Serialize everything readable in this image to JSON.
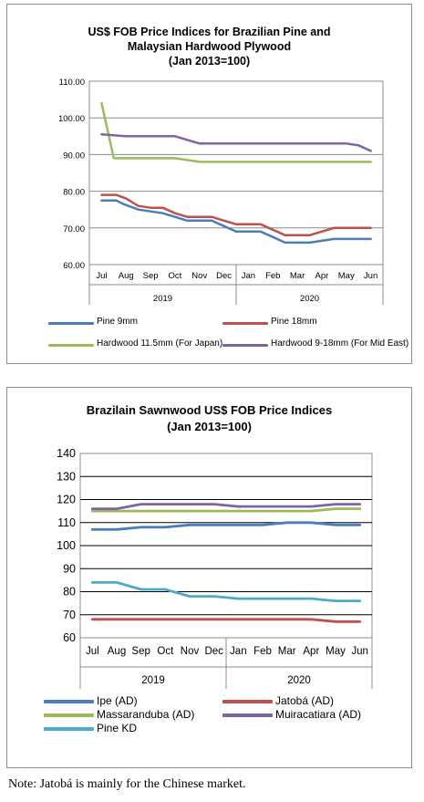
{
  "chart_data": [
    {
      "type": "line",
      "title_lines": [
        "US$ FOB Price Indices for Brazilian Pine and",
        "Malaysian Hardwood Plywood",
        "(Jan 2013=100)"
      ],
      "categories": [
        "Jul",
        "Aug",
        "Sep",
        "Oct",
        "Nov",
        "Dec",
        "Jan",
        "Feb",
        "Mar",
        "Apr",
        "May",
        "Jun"
      ],
      "groups": [
        {
          "label": "2019",
          "span": 6
        },
        {
          "label": "2020",
          "span": 6
        }
      ],
      "ylim": [
        60,
        110
      ],
      "yticks": [
        "60.00",
        "70.00",
        "80.00",
        "90.00",
        "100.00",
        "110.00"
      ],
      "grid": true,
      "legend_position": "bottom",
      "series": [
        {
          "name": "Pine 9mm",
          "color": "#4a7ebb",
          "x": [
            0,
            0.6,
            0.9,
            1.5,
            2,
            2.5,
            3,
            3.5,
            4,
            4.5,
            5,
            5.5,
            6,
            6.5,
            7,
            7.5,
            8,
            8.5,
            9,
            9.5,
            10,
            10.5,
            11
          ],
          "values": [
            77.5,
            77.5,
            76.5,
            75,
            74.5,
            74,
            73,
            72,
            72,
            72,
            70.5,
            69,
            69,
            69,
            67.5,
            66,
            66,
            66,
            66.5,
            67,
            67,
            67,
            67
          ]
        },
        {
          "name": "Pine 18mm",
          "color": "#c0504d",
          "x": [
            0,
            0.6,
            1,
            1.5,
            2,
            2.5,
            3,
            3.5,
            4,
            4.5,
            5,
            5.5,
            6,
            6.5,
            7,
            7.5,
            8,
            8.5,
            9,
            9.5,
            10,
            10.5,
            11
          ],
          "values": [
            79,
            79,
            78,
            76,
            75.5,
            75.5,
            74,
            73,
            73,
            73,
            72,
            71,
            71,
            71,
            69.5,
            68,
            68,
            68,
            69,
            70,
            70,
            70,
            70
          ]
        },
        {
          "name": "Hardwood 11.5mm (For Japan)",
          "color": "#9bbb59",
          "x": [
            0,
            0.5,
            1,
            2,
            3,
            4,
            5,
            6,
            7,
            8,
            9,
            10,
            11
          ],
          "values": [
            104,
            89,
            89,
            89,
            89,
            88,
            88,
            88,
            88,
            88,
            88,
            88,
            88
          ]
        },
        {
          "name": "Hardwood 9-18mm (For Mid East)",
          "color": "#8064a2",
          "x": [
            0,
            1,
            2,
            3,
            4,
            5,
            6,
            7,
            8,
            9,
            10,
            10.5,
            11
          ],
          "values": [
            95.5,
            95,
            95,
            95,
            93,
            93,
            93,
            93,
            93,
            93,
            93,
            92.5,
            91
          ]
        }
      ]
    },
    {
      "type": "line",
      "title_lines": [
        "Brazilain Sawnwood US$ FOB Price Indices",
        "(Jan 2013=100)"
      ],
      "categories": [
        "Jul",
        "Aug",
        "Sep",
        "Oct",
        "Nov",
        "Dec",
        "Jan",
        "Feb",
        "Mar",
        "Apr",
        "May",
        "Jun"
      ],
      "groups": [
        {
          "label": "2019",
          "span": 6
        },
        {
          "label": "2020",
          "span": 6
        }
      ],
      "ylim": [
        60,
        140
      ],
      "yticks": [
        "60",
        "70",
        "80",
        "90",
        "100",
        "110",
        "120",
        "130",
        "140"
      ],
      "grid": true,
      "legend_position": "bottom",
      "series": [
        {
          "name": "Ipe (AD)",
          "color": "#4a7ebb",
          "x": [
            0,
            1,
            2,
            3,
            4,
            5,
            6,
            7,
            8,
            9,
            10,
            11
          ],
          "values": [
            107,
            107,
            108,
            108,
            109,
            109,
            109,
            109,
            110,
            110,
            109,
            109
          ]
        },
        {
          "name": "Jatobá (AD)",
          "color": "#c0504d",
          "x": [
            0,
            1,
            2,
            3,
            4,
            5,
            6,
            7,
            8,
            9,
            10,
            11
          ],
          "values": [
            68,
            68,
            68,
            68,
            68,
            68,
            68,
            68,
            68,
            68,
            67,
            67
          ]
        },
        {
          "name": "Massaranduba (AD)",
          "color": "#9bbb59",
          "x": [
            0,
            1,
            2,
            3,
            4,
            5,
            6,
            7,
            8,
            9,
            10,
            11
          ],
          "values": [
            115,
            115,
            115,
            115,
            115,
            115,
            115,
            115,
            115,
            115,
            116,
            116
          ]
        },
        {
          "name": "Muiracatiara (AD)",
          "color": "#8064a2",
          "x": [
            0,
            1,
            2,
            3,
            4,
            5,
            6,
            7,
            8,
            9,
            10,
            11
          ],
          "values": [
            116,
            116,
            118,
            118,
            118,
            118,
            117,
            117,
            117,
            117,
            118,
            118
          ]
        },
        {
          "name": "Pine KD",
          "color": "#4bacc6",
          "x": [
            0,
            1,
            2,
            3,
            4,
            5,
            6,
            7,
            8,
            9,
            10,
            11
          ],
          "values": [
            84,
            84,
            81,
            81,
            78,
            78,
            77,
            77,
            77,
            77,
            76,
            76
          ]
        }
      ]
    }
  ],
  "note": "Note: Jatobá is mainly for the Chinese market."
}
